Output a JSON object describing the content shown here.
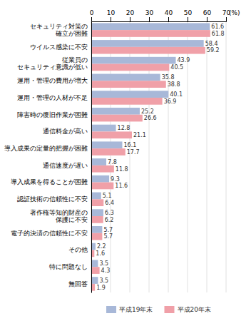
{
  "chart_data": {
    "type": "bar",
    "orientation": "horizontal",
    "categories": [
      "セキュリティ対策の\n確立が困難",
      "ウイルス感染に不安",
      "従業員の\nセキュリティ意識が低い",
      "運用・管理の費用が増大",
      "運用・管理の人材が不足",
      "障害時の復旧作業が困難",
      "通信料金が高い",
      "導入成果の定量的把握が困難",
      "通信速度が遅い",
      "導入成果を得ることが困難",
      "認証技術の信頼性に不安",
      "著作権等知的財産の\n保護に不安",
      "電子的決済の信頼性に不安",
      "その他",
      "特に問題なし",
      "無回答"
    ],
    "series": [
      {
        "name": "平成19年末",
        "color": "#a8b8d8",
        "values": [
          61.6,
          58.4,
          43.9,
          35.8,
          40.1,
          25.2,
          12.8,
          16.1,
          7.8,
          9.3,
          5.1,
          6.3,
          5.7,
          2.2,
          3.5,
          3.5
        ]
      },
      {
        "name": "平成20年末",
        "color": "#f0a0a8",
        "values": [
          61.8,
          59.2,
          40.5,
          38.8,
          36.9,
          26.6,
          21.1,
          17.7,
          11.8,
          11.6,
          6.4,
          6.2,
          5.7,
          1.6,
          4.3,
          1.9
        ]
      }
    ],
    "xlabel": "(%)",
    "xlim": [
      0,
      70
    ],
    "xticks": [
      0,
      10,
      20,
      30,
      40,
      50,
      60,
      70
    ],
    "grid": true,
    "data_labels": true,
    "legend": "bottom"
  }
}
